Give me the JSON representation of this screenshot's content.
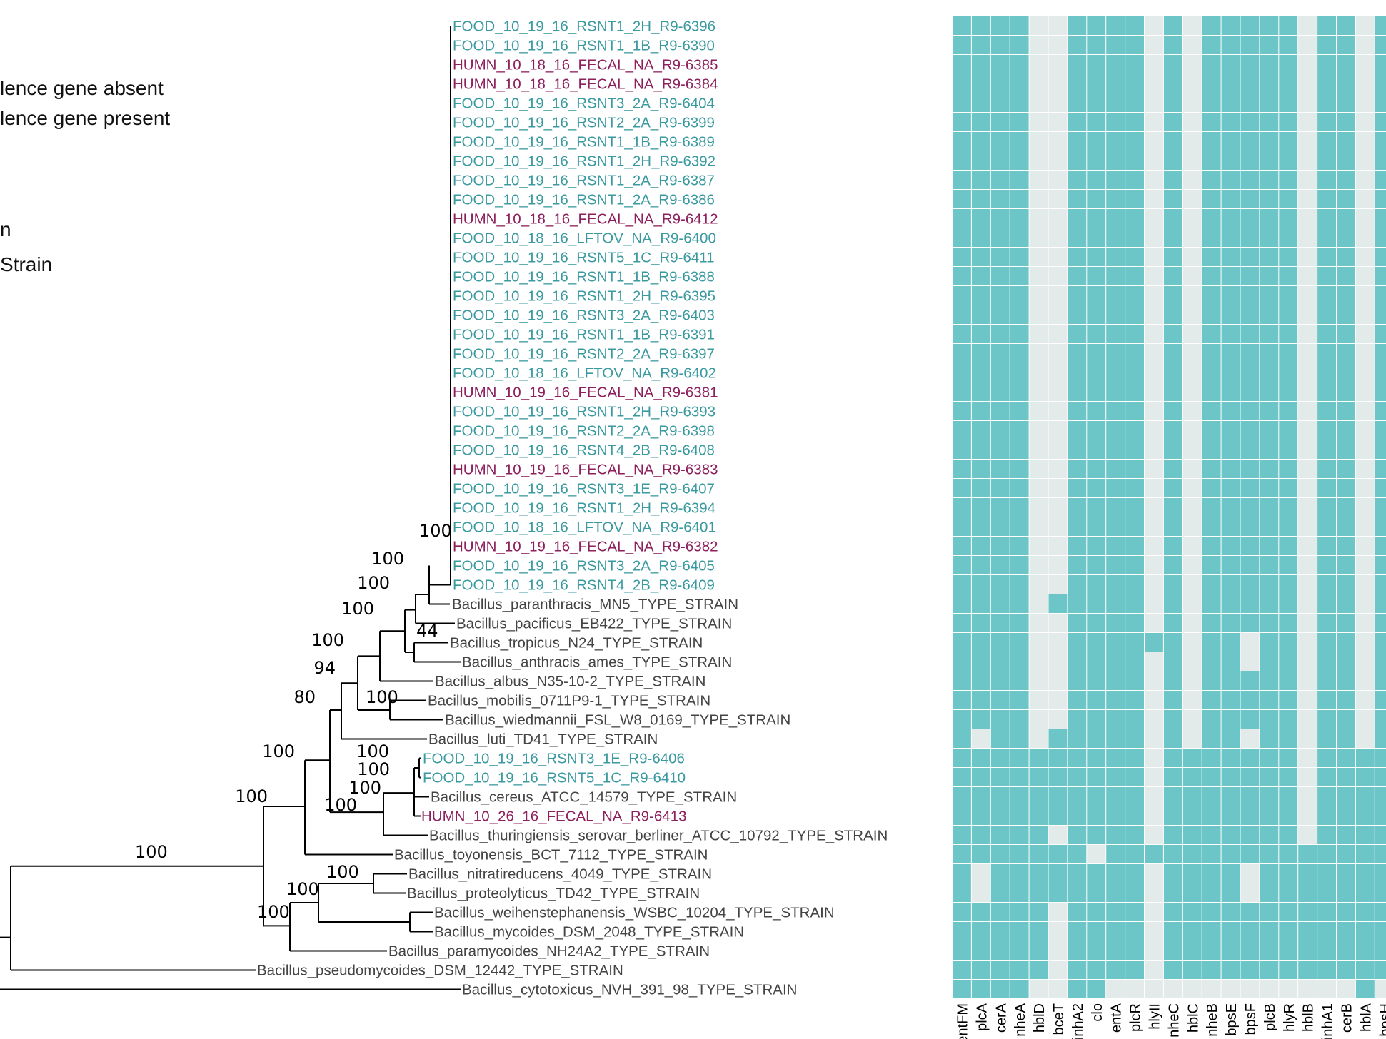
{
  "legend": {
    "absent_label": "lence gene absent",
    "present_label": "lence gene present",
    "source_label": "n",
    "type_label": "Strain"
  },
  "colors": {
    "present": "#6cc6c8",
    "absent": "#e3eaea",
    "food": "#3a9aa0",
    "human": "#8c1f5c",
    "type_strain": "#444444",
    "branch": "#000000"
  },
  "tree": {
    "tips": [
      {
        "label": "FOOD_10_19_16_RSNT1_2H_R9-6396",
        "group": "food"
      },
      {
        "label": "FOOD_10_19_16_RSNT1_1B_R9-6390",
        "group": "food"
      },
      {
        "label": "HUMN_10_18_16_FECAL_NA_R9-6385",
        "group": "human"
      },
      {
        "label": "HUMN_10_18_16_FECAL_NA_R9-6384",
        "group": "human"
      },
      {
        "label": "FOOD_10_19_16_RSNT3_2A_R9-6404",
        "group": "food"
      },
      {
        "label": "FOOD_10_19_16_RSNT2_2A_R9-6399",
        "group": "food"
      },
      {
        "label": "FOOD_10_19_16_RSNT1_1B_R9-6389",
        "group": "food"
      },
      {
        "label": "FOOD_10_19_16_RSNT1_2H_R9-6392",
        "group": "food"
      },
      {
        "label": "FOOD_10_19_16_RSNT1_2A_R9-6387",
        "group": "food"
      },
      {
        "label": "FOOD_10_19_16_RSNT1_2A_R9-6386",
        "group": "food"
      },
      {
        "label": "HUMN_10_18_16_FECAL_NA_R9-6412",
        "group": "human"
      },
      {
        "label": "FOOD_10_18_16_LFTOV_NA_R9-6400",
        "group": "food"
      },
      {
        "label": "FOOD_10_19_16_RSNT5_1C_R9-6411",
        "group": "food"
      },
      {
        "label": "FOOD_10_19_16_RSNT1_1B_R9-6388",
        "group": "food"
      },
      {
        "label": "FOOD_10_19_16_RSNT1_2H_R9-6395",
        "group": "food"
      },
      {
        "label": "FOOD_10_19_16_RSNT3_2A_R9-6403",
        "group": "food"
      },
      {
        "label": "FOOD_10_19_16_RSNT1_1B_R9-6391",
        "group": "food"
      },
      {
        "label": "FOOD_10_19_16_RSNT2_2A_R9-6397",
        "group": "food"
      },
      {
        "label": "FOOD_10_18_16_LFTOV_NA_R9-6402",
        "group": "food"
      },
      {
        "label": "HUMN_10_19_16_FECAL_NA_R9-6381",
        "group": "human"
      },
      {
        "label": "FOOD_10_19_16_RSNT1_2H_R9-6393",
        "group": "food"
      },
      {
        "label": "FOOD_10_19_16_RSNT2_2A_R9-6398",
        "group": "food"
      },
      {
        "label": "FOOD_10_19_16_RSNT4_2B_R9-6408",
        "group": "food"
      },
      {
        "label": "HUMN_10_19_16_FECAL_NA_R9-6383",
        "group": "human"
      },
      {
        "label": "FOOD_10_19_16_RSNT3_1E_R9-6407",
        "group": "food"
      },
      {
        "label": "FOOD_10_19_16_RSNT1_2H_R9-6394",
        "group": "food"
      },
      {
        "label": "FOOD_10_18_16_LFTOV_NA_R9-6401",
        "group": "food"
      },
      {
        "label": "HUMN_10_19_16_FECAL_NA_R9-6382",
        "group": "human"
      },
      {
        "label": "FOOD_10_19_16_RSNT3_2A_R9-6405",
        "group": "food"
      },
      {
        "label": "FOOD_10_19_16_RSNT4_2B_R9-6409",
        "group": "food"
      },
      {
        "label": "Bacillus_paranthracis_MN5_TYPE_STRAIN",
        "group": "type"
      },
      {
        "label": "Bacillus_pacificus_EB422_TYPE_STRAIN",
        "group": "type"
      },
      {
        "label": "Bacillus_tropicus_N24_TYPE_STRAIN",
        "group": "type"
      },
      {
        "label": "Bacillus_anthracis_ames_TYPE_STRAIN",
        "group": "type"
      },
      {
        "label": "Bacillus_albus_N35-10-2_TYPE_STRAIN",
        "group": "type"
      },
      {
        "label": "Bacillus_mobilis_0711P9-1_TYPE_STRAIN",
        "group": "type"
      },
      {
        "label": "Bacillus_wiedmannii_FSL_W8_0169_TYPE_STRAIN",
        "group": "type"
      },
      {
        "label": "Bacillus_luti_TD41_TYPE_STRAIN",
        "group": "type"
      },
      {
        "label": "FOOD_10_19_16_RSNT3_1E_R9-6406",
        "group": "food"
      },
      {
        "label": "FOOD_10_19_16_RSNT5_1C_R9-6410",
        "group": "food"
      },
      {
        "label": "Bacillus_cereus_ATCC_14579_TYPE_STRAIN",
        "group": "type"
      },
      {
        "label": "HUMN_10_26_16_FECAL_NA_R9-6413",
        "group": "human"
      },
      {
        "label": "Bacillus_thuringiensis_serovar_berliner_ATCC_10792_TYPE_STRAIN",
        "group": "type"
      },
      {
        "label": "Bacillus_toyonensis_BCT_7112_TYPE_STRAIN",
        "group": "type"
      },
      {
        "label": "Bacillus_nitratireducens_4049_TYPE_STRAIN",
        "group": "type"
      },
      {
        "label": "Bacillus_proteolyticus_TD42_TYPE_STRAIN",
        "group": "type"
      },
      {
        "label": "Bacillus_weihenstephanensis_WSBC_10204_TYPE_STRAIN",
        "group": "type"
      },
      {
        "label": "Bacillus_mycoides_DSM_2048_TYPE_STRAIN",
        "group": "type"
      },
      {
        "label": "Bacillus_paramycoides_NH24A2_TYPE_STRAIN",
        "group": "type"
      },
      {
        "label": "Bacillus_pseudomycoides_DSM_12442_TYPE_STRAIN",
        "group": "type"
      },
      {
        "label": "Bacillus_cytotoxicus_NVH_391_98_TYPE_STRAIN",
        "group": "type"
      }
    ],
    "support_values": [
      "100",
      "100",
      "100",
      "100",
      "44",
      "100",
      "94",
      "80",
      "100",
      "100",
      "100",
      "100",
      "100",
      "100",
      "100",
      "100",
      "100",
      "100",
      "100"
    ]
  },
  "heatmap": {
    "genes": [
      "entFM",
      "plcA",
      "cerA",
      "nheA",
      "hblD",
      "bceT",
      "inhA2",
      "clo",
      "entA",
      "plcR",
      "hlyII",
      "nheC",
      "hblC",
      "nheB",
      "bpsE",
      "bpsF",
      "plcB",
      "hlyR",
      "hblB",
      "inhA1",
      "cerB",
      "hblA",
      "bpsH"
    ],
    "absent": [
      "4,5,10,12,18,21",
      "4,5,10,12,18,21",
      "4,5,10,12,18,21",
      "4,5,10,12,18,21",
      "4,5,10,12,18,21",
      "4,5,10,12,18,21",
      "4,5,10,12,18,21",
      "4,5,10,12,18,21",
      "4,5,10,12,18,21",
      "4,5,10,12,18,21",
      "4,5,10,12,18,21",
      "4,5,10,12,18,21",
      "4,5,10,12,18,21",
      "4,5,10,12,18,21",
      "4,5,10,12,18,21",
      "4,5,10,12,18,21",
      "4,5,10,12,18,21",
      "4,5,10,12,18,21",
      "4,5,10,12,18,21",
      "4,5,10,12,18,21",
      "4,5,10,12,18,21",
      "4,5,10,12,18,21",
      "4,5,10,12,18,21",
      "4,5,10,12,18,21",
      "4,5,10,12,18,21",
      "4,5,10,12,18,21",
      "4,5,10,12,18,21",
      "4,5,10,12,18,21",
      "4,5,10,12,18,21",
      "4,5,10,12,18,21",
      "4,10,12,18,21",
      "4,5,10,12,18,21",
      "4,5,12,15,18,21",
      "4,5,10,12,15,18,21",
      "4,5,10,12,18,21",
      "4,5,10,12,18,21",
      "4,5,10,12,18,21",
      "1,4,10,12,15,18,21",
      "10,18",
      "10,18",
      "10,18",
      "10,18",
      "5,10,18",
      "7",
      "1,10,15",
      "1,10,15",
      "5,10",
      "5,10",
      "5,10",
      "5,10",
      "4,5,8,9,10,11,12,13,14,15,16,17,18,19,20,22"
    ]
  }
}
